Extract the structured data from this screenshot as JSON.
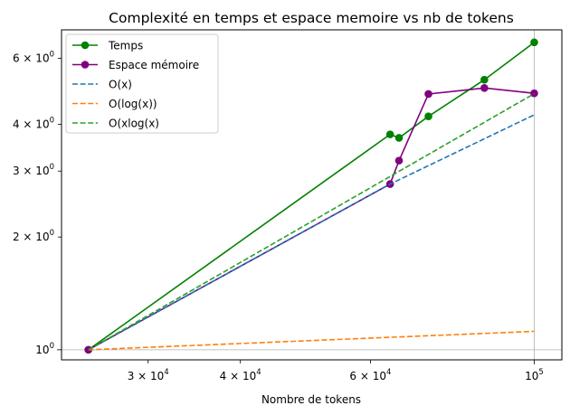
{
  "chart_data": {
    "type": "line",
    "title": "Complexité en temps et espace memoire vs nb de tokens",
    "xlabel": "Nombre de tokens",
    "ylabel": "",
    "xscale": "log",
    "yscale": "log",
    "xlim": [
      22900,
      109000
    ],
    "ylim": [
      0.94,
      7.15
    ],
    "grid": "x=1e5 and y=1 only",
    "legend": "top-left",
    "x_ticks": [
      {
        "value": 30000,
        "mant": "3",
        "exp": "4"
      },
      {
        "value": 40000,
        "mant": "4",
        "exp": "4"
      },
      {
        "value": 60000,
        "mant": "6",
        "exp": "4"
      },
      {
        "value": 100000,
        "mant": "",
        "exp": "5"
      }
    ],
    "y_ticks": [
      {
        "value": 1,
        "mant": "",
        "exp": "0"
      },
      {
        "value": 2,
        "mant": "2",
        "exp": "0"
      },
      {
        "value": 3,
        "mant": "3",
        "exp": "0"
      },
      {
        "value": 4,
        "mant": "4",
        "exp": "0"
      },
      {
        "value": 6,
        "mant": "6",
        "exp": "0"
      }
    ],
    "series": [
      {
        "name": "Temps",
        "color": "#008000",
        "style": "solid",
        "marker": true,
        "x": [
          24900,
          63800,
          65600,
          71900,
          85600,
          100000
        ],
        "y": [
          1.0,
          3.76,
          3.68,
          4.2,
          5.26,
          6.62
        ]
      },
      {
        "name": "Espace mémoire",
        "color": "#800080",
        "style": "solid",
        "marker": true,
        "x": [
          24900,
          63800,
          65600,
          71900,
          85600,
          100000
        ],
        "y": [
          1.0,
          2.77,
          3.2,
          4.82,
          5.0,
          4.84
        ]
      },
      {
        "name": "O(x)",
        "color": "#1f77b4",
        "style": "dashed",
        "marker": false,
        "x": [
          24900,
          63800,
          100000
        ],
        "y": [
          1.0,
          2.77,
          4.24
        ]
      },
      {
        "name": "O(log(x))",
        "color": "#ff7f0e",
        "style": "dashed",
        "marker": false,
        "x": [
          24900,
          100000
        ],
        "y": [
          1.0,
          1.12
        ]
      },
      {
        "name": "O(xlog(x)",
        "color": "#2ca02c",
        "style": "dashed",
        "marker": false,
        "x": [
          24900,
          100000
        ],
        "y": [
          1.0,
          4.83
        ]
      }
    ]
  }
}
